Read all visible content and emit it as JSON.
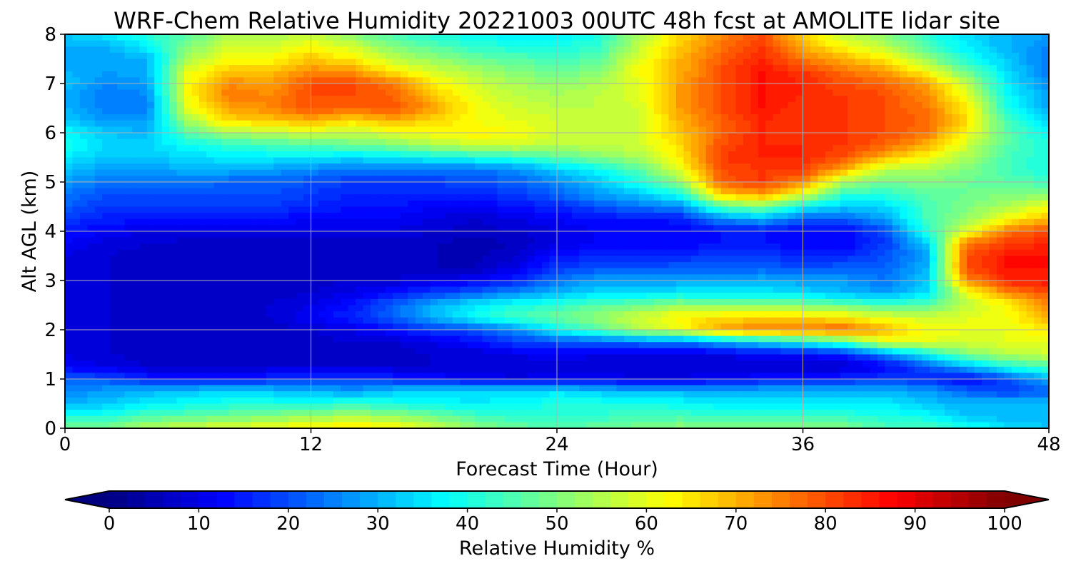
{
  "chart_data": {
    "type": "heatmap",
    "title": "WRF-Chem Relative Humidity 20221003 00UTC 48h fcst at AMOLITE lidar site",
    "xlabel": "Forecast Time (Hour)",
    "ylabel": "Alt AGL (km)",
    "xlim": [
      0,
      48
    ],
    "ylim": [
      0,
      8
    ],
    "xticks": [
      0,
      12,
      24,
      36,
      48
    ],
    "xtick_labels": [
      "0",
      "12",
      "24",
      "36",
      "48"
    ],
    "yticks": [
      0,
      1,
      2,
      3,
      4,
      5,
      6,
      7,
      8
    ],
    "ytick_labels": [
      "0",
      "1",
      "2",
      "3",
      "4",
      "5",
      "6",
      "7",
      "8"
    ],
    "grid": true,
    "colormap": "jet",
    "colorbar": {
      "label": "Relative Humidity %",
      "range": [
        0,
        100
      ],
      "ticks": [
        0,
        10,
        20,
        30,
        40,
        50,
        60,
        70,
        80,
        90,
        100
      ],
      "tick_labels": [
        "0",
        "10",
        "20",
        "30",
        "40",
        "50",
        "60",
        "70",
        "80",
        "90",
        "100"
      ],
      "extend": "both",
      "orientation": "horizontal",
      "placement": "bottom"
    },
    "x": [
      0,
      2,
      4,
      6,
      8,
      10,
      12,
      14,
      16,
      18,
      20,
      22,
      24,
      26,
      28,
      30,
      32,
      34,
      36,
      38,
      40,
      42,
      44,
      46,
      48
    ],
    "y": [
      0,
      0.25,
      0.5,
      0.75,
      1,
      1.25,
      1.5,
      1.75,
      2,
      2.25,
      2.5,
      2.75,
      3,
      3.25,
      3.5,
      3.75,
      4,
      4.25,
      4.5,
      4.75,
      5,
      5.25,
      5.5,
      5.75,
      6,
      6.25,
      6.5,
      6.75,
      7,
      7.25,
      7.5,
      7.75,
      8
    ],
    "z": [
      [
        50,
        50,
        55,
        58,
        60,
        62,
        64,
        66,
        64,
        58,
        52,
        48,
        46,
        48,
        50,
        52,
        50,
        50,
        50,
        50,
        45,
        45,
        40,
        35,
        32
      ],
      [
        40,
        40,
        45,
        46,
        48,
        50,
        52,
        54,
        52,
        48,
        44,
        42,
        42,
        42,
        44,
        44,
        42,
        42,
        42,
        42,
        40,
        38,
        32,
        30,
        30
      ],
      [
        30,
        32,
        36,
        38,
        40,
        40,
        40,
        42,
        40,
        38,
        36,
        38,
        40,
        40,
        40,
        38,
        36,
        36,
        36,
        36,
        36,
        32,
        30,
        32,
        30
      ],
      [
        25,
        28,
        30,
        32,
        34,
        32,
        30,
        28,
        32,
        34,
        34,
        34,
        35,
        32,
        30,
        30,
        30,
        30,
        30,
        30,
        30,
        28,
        22,
        18,
        22
      ],
      [
        22,
        20,
        16,
        14,
        14,
        16,
        18,
        18,
        16,
        14,
        12,
        10,
        12,
        12,
        10,
        10,
        12,
        14,
        14,
        16,
        18,
        16,
        12,
        20,
        30
      ],
      [
        12,
        10,
        8,
        8,
        8,
        8,
        8,
        8,
        8,
        8,
        8,
        8,
        8,
        8,
        8,
        8,
        8,
        8,
        8,
        8,
        12,
        20,
        30,
        40,
        45
      ],
      [
        10,
        8,
        7,
        7,
        7,
        7,
        7,
        7,
        7,
        8,
        8,
        10,
        12,
        10,
        8,
        8,
        10,
        12,
        12,
        15,
        25,
        38,
        50,
        55,
        58
      ],
      [
        10,
        8,
        7,
        7,
        7,
        7,
        7,
        8,
        8,
        10,
        14,
        18,
        20,
        22,
        24,
        24,
        30,
        34,
        38,
        45,
        60,
        60,
        58,
        60,
        60
      ],
      [
        10,
        8,
        7,
        7,
        7,
        7,
        8,
        10,
        14,
        18,
        20,
        26,
        38,
        45,
        55,
        60,
        72,
        76,
        76,
        78,
        70,
        62,
        60,
        60,
        65
      ],
      [
        10,
        8,
        7,
        7,
        7,
        8,
        12,
        16,
        22,
        30,
        38,
        44,
        48,
        52,
        58,
        64,
        66,
        66,
        66,
        64,
        60,
        58,
        60,
        62,
        70
      ],
      [
        10,
        8,
        7,
        7,
        7,
        8,
        10,
        14,
        22,
        30,
        36,
        40,
        42,
        46,
        48,
        52,
        50,
        50,
        50,
        48,
        45,
        46,
        56,
        62,
        74
      ],
      [
        10,
        8,
        7,
        7,
        7,
        7,
        8,
        10,
        14,
        18,
        22,
        26,
        30,
        34,
        34,
        36,
        36,
        36,
        34,
        30,
        28,
        34,
        60,
        74,
        80
      ],
      [
        10,
        8,
        7,
        7,
        7,
        7,
        7,
        8,
        8,
        10,
        12,
        16,
        24,
        28,
        28,
        28,
        28,
        30,
        28,
        28,
        24,
        32,
        74,
        84,
        86
      ],
      [
        10,
        8,
        7,
        7,
        7,
        7,
        7,
        7,
        7,
        6,
        6,
        10,
        18,
        20,
        20,
        22,
        22,
        22,
        20,
        22,
        22,
        30,
        80,
        86,
        86
      ],
      [
        10,
        8,
        7,
        7,
        7,
        7,
        7,
        7,
        7,
        6,
        5,
        8,
        14,
        16,
        16,
        16,
        18,
        18,
        16,
        16,
        20,
        28,
        80,
        86,
        86
      ],
      [
        12,
        9,
        8,
        7,
        7,
        7,
        7,
        7,
        7,
        6,
        5,
        6,
        10,
        12,
        12,
        12,
        14,
        14,
        12,
        12,
        18,
        32,
        76,
        82,
        84
      ],
      [
        15,
        12,
        10,
        10,
        10,
        10,
        10,
        10,
        10,
        8,
        7,
        8,
        10,
        12,
        12,
        12,
        14,
        14,
        12,
        12,
        20,
        40,
        60,
        76,
        80
      ],
      [
        18,
        15,
        15,
        15,
        14,
        14,
        12,
        12,
        12,
        10,
        8,
        10,
        12,
        14,
        14,
        15,
        26,
        30,
        22,
        22,
        28,
        44,
        52,
        62,
        70
      ],
      [
        22,
        18,
        18,
        18,
        18,
        18,
        16,
        14,
        14,
        12,
        12,
        14,
        16,
        20,
        24,
        26,
        46,
        50,
        38,
        32,
        34,
        44,
        50,
        54,
        62
      ],
      [
        24,
        20,
        20,
        20,
        20,
        20,
        18,
        16,
        16,
        16,
        16,
        18,
        22,
        28,
        32,
        40,
        68,
        72,
        60,
        42,
        42,
        46,
        48,
        50,
        50
      ],
      [
        28,
        24,
        24,
        24,
        22,
        22,
        20,
        18,
        18,
        18,
        20,
        22,
        26,
        32,
        40,
        52,
        78,
        82,
        74,
        54,
        48,
        50,
        48,
        46,
        44
      ],
      [
        32,
        28,
        28,
        30,
        30,
        28,
        26,
        24,
        24,
        24,
        24,
        26,
        32,
        38,
        46,
        60,
        80,
        82,
        82,
        70,
        56,
        54,
        50,
        44,
        40
      ],
      [
        36,
        32,
        32,
        34,
        36,
        36,
        36,
        34,
        36,
        38,
        40,
        42,
        46,
        50,
        54,
        64,
        82,
        84,
        84,
        80,
        70,
        62,
        54,
        44,
        40
      ],
      [
        40,
        34,
        34,
        38,
        42,
        44,
        46,
        48,
        50,
        54,
        58,
        58,
        56,
        56,
        58,
        66,
        80,
        84,
        84,
        82,
        78,
        70,
        58,
        46,
        40
      ],
      [
        38,
        32,
        30,
        46,
        54,
        56,
        58,
        56,
        60,
        62,
        64,
        62,
        58,
        56,
        58,
        68,
        78,
        84,
        82,
        82,
        80,
        76,
        62,
        46,
        38
      ],
      [
        32,
        28,
        28,
        54,
        66,
        68,
        70,
        66,
        70,
        66,
        62,
        60,
        58,
        56,
        58,
        70,
        78,
        84,
        82,
        82,
        80,
        78,
        66,
        44,
        32
      ],
      [
        30,
        24,
        24,
        60,
        72,
        74,
        80,
        78,
        80,
        72,
        62,
        58,
        56,
        56,
        58,
        72,
        80,
        86,
        82,
        82,
        80,
        76,
        64,
        40,
        28
      ],
      [
        30,
        24,
        26,
        62,
        76,
        74,
        80,
        80,
        78,
        68,
        60,
        56,
        54,
        56,
        60,
        72,
        80,
        86,
        84,
        82,
        80,
        74,
        60,
        38,
        28
      ],
      [
        32,
        26,
        28,
        62,
        74,
        72,
        80,
        80,
        76,
        64,
        58,
        54,
        52,
        54,
        60,
        72,
        80,
        86,
        84,
        80,
        78,
        72,
        56,
        36,
        26
      ],
      [
        30,
        28,
        30,
        60,
        68,
        68,
        74,
        72,
        64,
        58,
        54,
        50,
        48,
        50,
        62,
        70,
        80,
        86,
        82,
        76,
        72,
        62,
        48,
        34,
        24
      ],
      [
        28,
        28,
        30,
        54,
        62,
        62,
        68,
        64,
        56,
        52,
        48,
        46,
        44,
        46,
        60,
        70,
        78,
        84,
        76,
        70,
        64,
        52,
        40,
        32,
        24
      ],
      [
        30,
        30,
        36,
        50,
        58,
        58,
        62,
        58,
        50,
        46,
        42,
        40,
        40,
        42,
        56,
        68,
        76,
        82,
        70,
        62,
        56,
        46,
        36,
        30,
        26
      ],
      [
        32,
        36,
        42,
        46,
        54,
        54,
        56,
        50,
        44,
        40,
        38,
        36,
        36,
        40,
        54,
        66,
        74,
        80,
        66,
        56,
        50,
        42,
        34,
        30,
        28
      ]
    ]
  }
}
